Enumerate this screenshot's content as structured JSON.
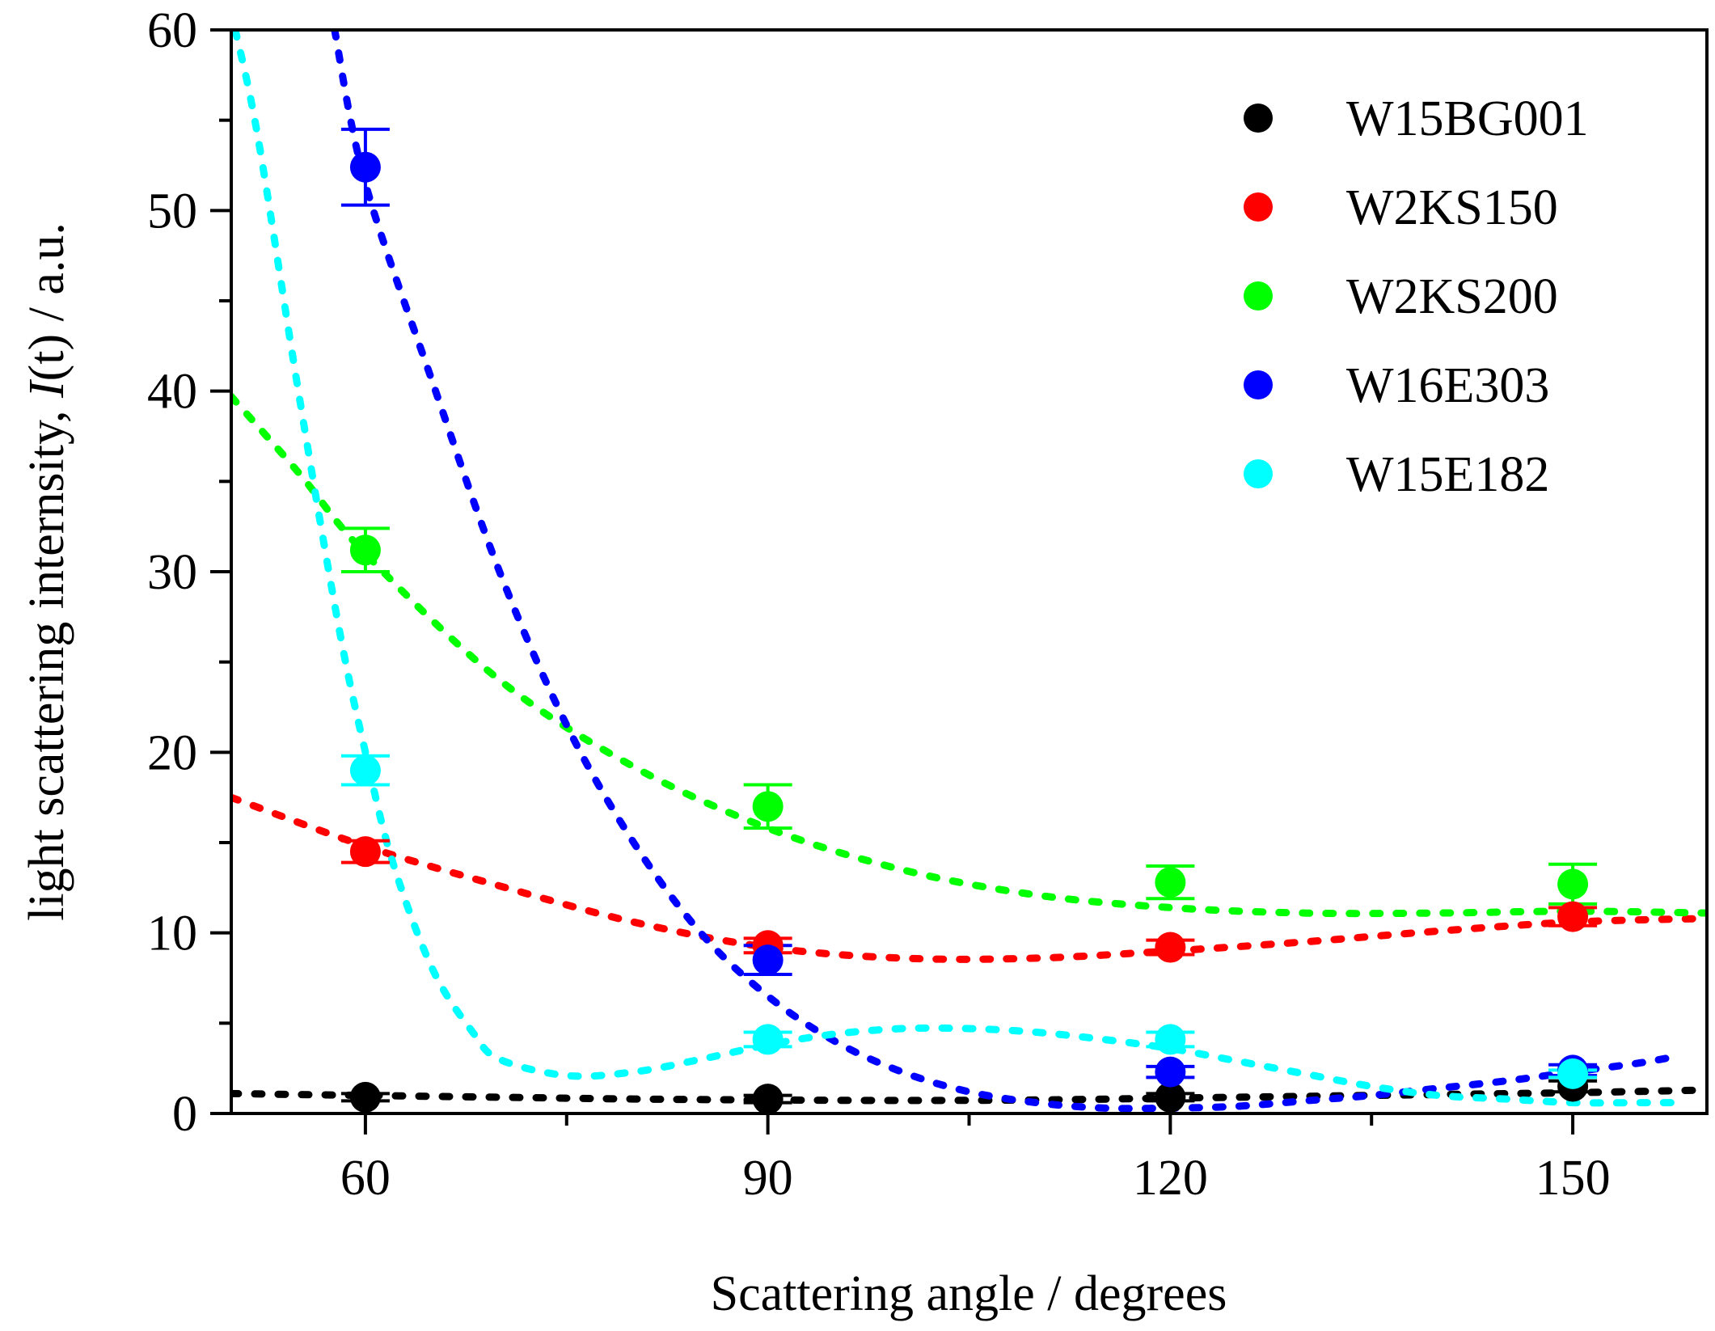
{
  "chart_data": {
    "type": "scatter",
    "title": "",
    "xlabel": "Scattering angle / degrees",
    "ylabel": {
      "prefix": "light scattering internsity, ",
      "italic": "I",
      "suffix": "(t) / a.u."
    },
    "xlim": [
      50,
      160
    ],
    "ylim": [
      0,
      60
    ],
    "x_ticks": [
      60,
      90,
      120,
      150
    ],
    "x_tick_labels": [
      "60",
      "90",
      "120",
      "150"
    ],
    "x_minor_ticks": [
      75,
      105,
      135
    ],
    "y_ticks": [
      0,
      10,
      20,
      30,
      40,
      50,
      60
    ],
    "y_tick_labels": [
      "0",
      "10",
      "20",
      "30",
      "40",
      "50",
      "60"
    ],
    "y_minor_ticks": [
      5,
      15,
      25,
      35,
      45,
      55
    ],
    "grid": false,
    "legend_position": "top-right",
    "series": [
      {
        "name": "W15BG001",
        "color": "#000000",
        "x": [
          60,
          90,
          120,
          150
        ],
        "y": [
          0.9,
          0.8,
          0.9,
          1.5
        ],
        "err": [
          0.2,
          0.2,
          0.2,
          0.3
        ],
        "fit_x": [
          50,
          60,
          70,
          80,
          90,
          100,
          110,
          120,
          130,
          140,
          150,
          160
        ],
        "fit_y": [
          1.1,
          1.0,
          0.9,
          0.8,
          0.75,
          0.72,
          0.75,
          0.85,
          0.95,
          1.05,
          1.15,
          1.3
        ]
      },
      {
        "name": "W2KS150",
        "color": "#ff0000",
        "x": [
          60,
          90,
          120,
          150
        ],
        "y": [
          14.5,
          9.3,
          9.2,
          10.9
        ],
        "err": [
          0.6,
          0.4,
          0.4,
          0.5
        ],
        "fit_x": [
          50,
          60,
          70,
          80,
          90,
          100,
          110,
          120,
          130,
          140,
          150,
          160
        ],
        "fit_y": [
          17.5,
          14.8,
          12.6,
          10.6,
          9.2,
          8.6,
          8.6,
          9.0,
          9.5,
          10.1,
          10.6,
          10.8
        ]
      },
      {
        "name": "W2KS200",
        "color": "#00ff00",
        "x": [
          60,
          90,
          120,
          150
        ],
        "y": [
          31.2,
          17.0,
          12.8,
          12.7
        ],
        "err": [
          1.2,
          1.2,
          0.9,
          1.1
        ],
        "fit_x": [
          50,
          55,
          60,
          70,
          80,
          90,
          100,
          110,
          120,
          130,
          140,
          150,
          160
        ],
        "fit_y": [
          39.7,
          35.5,
          31.0,
          24.0,
          19.2,
          15.8,
          13.5,
          12.1,
          11.4,
          11.1,
          11.1,
          11.2,
          11.1
        ]
      },
      {
        "name": "W16E303",
        "color": "#0000ff",
        "x": [
          60,
          90,
          120,
          150
        ],
        "y": [
          52.4,
          8.5,
          2.3,
          2.4
        ],
        "err": [
          2.1,
          0.8,
          0.3,
          0.3
        ],
        "fit_x": [
          57.7,
          60,
          65,
          70,
          75,
          80,
          85,
          90,
          95,
          100,
          105,
          110,
          115,
          120,
          125,
          130,
          135,
          140,
          145,
          150,
          155,
          158
        ],
        "fit_y": [
          60,
          51.5,
          40.5,
          30.0,
          21.5,
          15.0,
          10.0,
          6.5,
          4.0,
          2.3,
          1.2,
          0.6,
          0.3,
          0.3,
          0.4,
          0.7,
          1.0,
          1.4,
          1.8,
          2.3,
          2.8,
          3.2
        ]
      },
      {
        "name": "W15E182",
        "color": "#00ffff",
        "x": [
          60,
          90,
          120,
          150
        ],
        "y": [
          19.0,
          4.1,
          4.1,
          2.2
        ],
        "err": [
          0.8,
          0.4,
          0.4,
          0.2
        ],
        "fit_x": [
          50.3,
          52,
          55,
          58,
          60,
          62,
          65,
          68,
          70,
          75,
          80,
          85,
          90,
          95,
          100,
          105,
          110,
          115,
          120,
          125,
          130,
          135,
          140,
          145,
          150,
          155,
          158
        ],
        "fit_y": [
          60,
          54.0,
          40.0,
          27.0,
          20.0,
          14.0,
          8.0,
          4.5,
          3.0,
          2.1,
          2.3,
          3.0,
          3.8,
          4.4,
          4.7,
          4.7,
          4.5,
          4.1,
          3.6,
          2.9,
          2.2,
          1.5,
          1.0,
          0.8,
          0.6,
          0.6,
          0.6
        ]
      }
    ]
  }
}
